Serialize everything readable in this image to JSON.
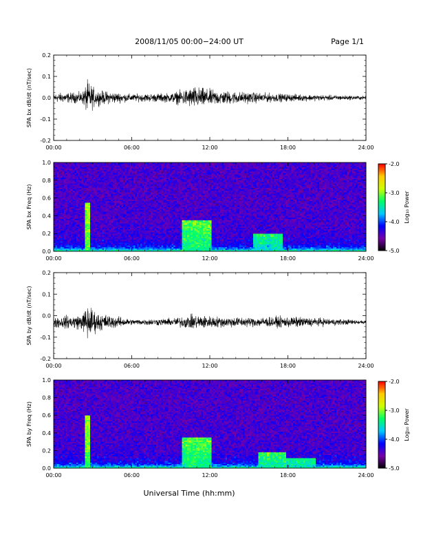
{
  "header": {
    "title": "2008/11/05  00:00−24:00 UT",
    "page": "Page 1/1"
  },
  "footer": {
    "xlabel": "Universal Time (hh:mm)"
  },
  "colorbar": {
    "label": "Log₁₀ Power",
    "ticks": [
      "-2.0",
      "-3.0",
      "-4.0",
      "-5.0"
    ],
    "colors": [
      "#000000",
      "#7700aa",
      "#0000ff",
      "#00c8ff",
      "#00ff66",
      "#ccff00",
      "#ffcc00",
      "#ff0000"
    ]
  },
  "chart_data": [
    {
      "type": "line",
      "ylabel": "SPA bx dB/dt (nT/sec)",
      "ylim": [
        -0.2,
        0.2
      ],
      "yticks": [
        "0.2",
        "0.1",
        "0.0",
        "-0.1",
        "-0.2"
      ],
      "xticks": [
        "00:00",
        "06:00",
        "12:00",
        "18:00",
        "24:00"
      ],
      "xlim_hours": [
        0,
        24
      ],
      "baseline": 0.0,
      "envelope": [
        {
          "t": 0,
          "amp": 0.025
        },
        {
          "t": 2.2,
          "amp": 0.03
        },
        {
          "t": 2.6,
          "amp": 0.09
        },
        {
          "t": 3.3,
          "amp": 0.04
        },
        {
          "t": 6,
          "amp": 0.02
        },
        {
          "t": 9,
          "amp": 0.025
        },
        {
          "t": 10.8,
          "amp": 0.06
        },
        {
          "t": 12.5,
          "amp": 0.04
        },
        {
          "t": 15,
          "amp": 0.03
        },
        {
          "t": 18,
          "amp": 0.02
        },
        {
          "t": 24,
          "amp": 0.01
        }
      ]
    },
    {
      "type": "heatmap",
      "ylabel": "SPA bx Freq (Hz)",
      "ylim": [
        0.0,
        1.0
      ],
      "yticks": [
        "1.0",
        "0.8",
        "0.6",
        "0.4",
        "0.2",
        "0.0"
      ],
      "xticks": [
        "00:00",
        "06:00",
        "12:00",
        "18:00",
        "24:00"
      ],
      "clim": [
        -5.0,
        -2.0
      ],
      "features": [
        {
          "t": 2.6,
          "fmax": 0.55,
          "level": -3.2
        },
        {
          "t": 11.0,
          "fmax": 0.35,
          "level": -3.4
        },
        {
          "t": 16.5,
          "fmax": 0.2,
          "level": -3.6
        }
      ]
    },
    {
      "type": "line",
      "ylabel": "SPA by dB/dt (nT/sec)",
      "ylim": [
        -0.2,
        0.2
      ],
      "yticks": [
        "0.2",
        "0.1",
        "0.0",
        "-0.1",
        "-0.2"
      ],
      "xticks": [
        "00:00",
        "06:00",
        "12:00",
        "18:00",
        "24:00"
      ],
      "xlim_hours": [
        0,
        24
      ],
      "baseline": -0.03,
      "envelope": [
        {
          "t": 0,
          "amp": 0.03
        },
        {
          "t": 2.2,
          "amp": 0.04
        },
        {
          "t": 2.6,
          "amp": 0.1
        },
        {
          "t": 3.3,
          "amp": 0.05
        },
        {
          "t": 6,
          "amp": 0.015
        },
        {
          "t": 9,
          "amp": 0.02
        },
        {
          "t": 10.8,
          "amp": 0.04
        },
        {
          "t": 12.5,
          "amp": 0.03
        },
        {
          "t": 15,
          "amp": 0.025
        },
        {
          "t": 18,
          "amp": 0.03
        },
        {
          "t": 24,
          "amp": 0.01
        }
      ]
    },
    {
      "type": "heatmap",
      "ylabel": "SPA by Freq (Hz)",
      "ylim": [
        0.0,
        1.0
      ],
      "yticks": [
        "1.0",
        "0.8",
        "0.6",
        "0.4",
        "0.2",
        "0.0"
      ],
      "xticks": [
        "00:00",
        "06:00",
        "12:00",
        "18:00",
        "24:00"
      ],
      "clim": [
        -5.0,
        -2.0
      ],
      "features": [
        {
          "t": 2.6,
          "fmax": 0.6,
          "level": -3.2
        },
        {
          "t": 11.0,
          "fmax": 0.35,
          "level": -3.4
        },
        {
          "t": 16.8,
          "fmax": 0.18,
          "level": -3.5
        },
        {
          "t": 19.0,
          "fmax": 0.12,
          "level": -3.6
        }
      ]
    }
  ]
}
